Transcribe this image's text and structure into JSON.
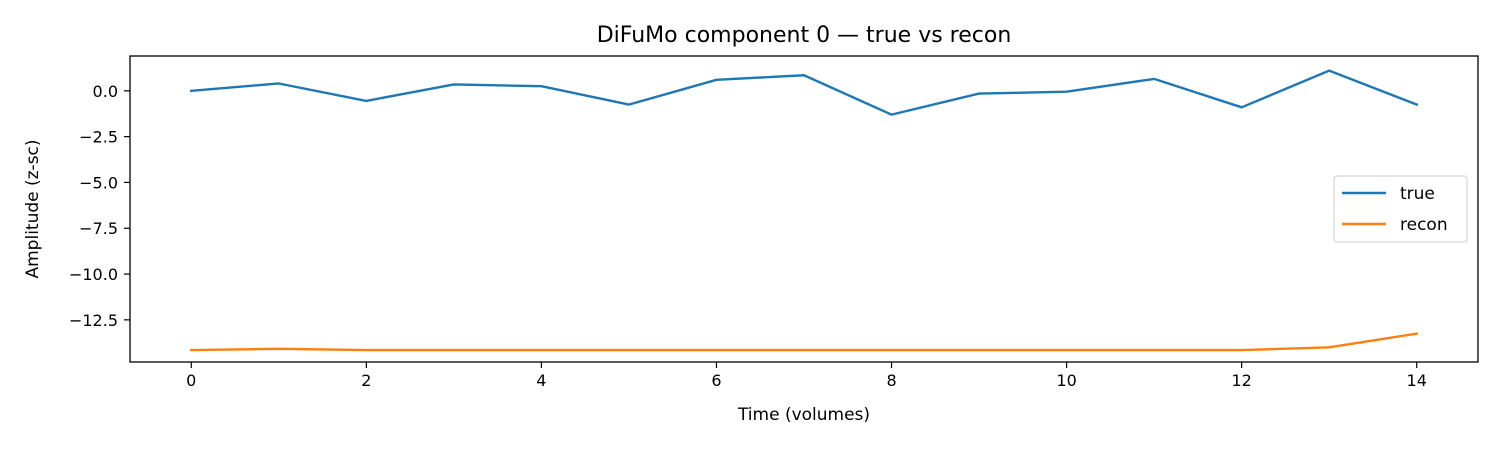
{
  "chart_data": {
    "type": "line",
    "title": "DiFuMo component 0 — true vs recon",
    "xlabel": "Time (volumes)",
    "ylabel": "Amplitude (z-sc)",
    "x": [
      0,
      1,
      2,
      3,
      4,
      5,
      6,
      7,
      8,
      9,
      10,
      11,
      12,
      13,
      14
    ],
    "xlim": [
      -0.7,
      14.7
    ],
    "ylim": [
      -14.8,
      1.9
    ],
    "xticks": [
      0,
      2,
      4,
      6,
      8,
      10,
      12,
      14
    ],
    "yticks": [
      0.0,
      -2.5,
      -5.0,
      -7.5,
      -10.0,
      -12.5
    ],
    "ytick_labels": [
      "0.0",
      "−2.5",
      "−5.0",
      "−7.5",
      "−10.0",
      "−12.5"
    ],
    "grid": false,
    "legend_position": "center-right",
    "series": [
      {
        "name": "true",
        "color": "#1f77b4",
        "values": [
          0.0,
          0.4,
          -0.55,
          0.35,
          0.25,
          -0.75,
          0.6,
          0.85,
          -1.3,
          -0.15,
          -0.05,
          0.65,
          -0.9,
          1.1,
          -0.75
        ]
      },
      {
        "name": "recon",
        "color": "#ff7f0e",
        "values": [
          -14.15,
          -14.08,
          -14.15,
          -14.15,
          -14.15,
          -14.15,
          -14.15,
          -14.15,
          -14.15,
          -14.15,
          -14.15,
          -14.15,
          -14.15,
          -14.0,
          -13.25
        ]
      }
    ]
  }
}
